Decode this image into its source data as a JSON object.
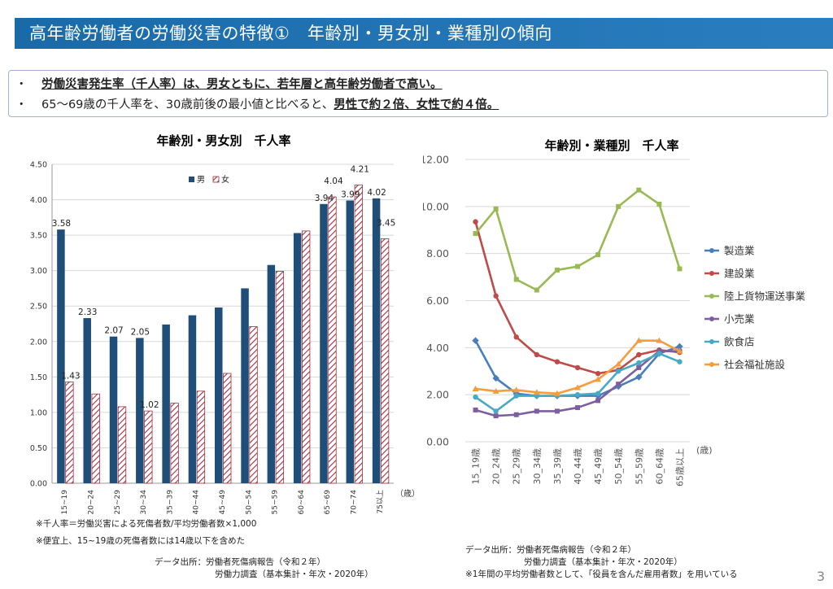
{
  "header": {
    "title": "高年齢労働者の労働災害の特徴①　年齢別・男女別・業種別の傾向"
  },
  "summary": {
    "bullet": "・",
    "line1_bold": "労働災害発生率（千人率）は、男女ともに、若年層と高年齢労働者で高い。",
    "line2_plain": "65～69歳の千人率を、30歳前後の最小値と比べると、",
    "line2_bold": "男性で約２倍、女性で約４倍。"
  },
  "notes": {
    "left1": "※千人率＝労働災害による死傷者数/平均労働者数×1,000",
    "left2": "※便宜上、15~19歳の死傷者数には14歳以下を含めた",
    "left_source1": "データ出所：労働者死傷病報告（令和２年）",
    "left_source2": "労働力調査（基本集計・年次・2020年）",
    "right_source1": "データ出所：労働者死傷病報告（令和２年）",
    "right_source2": "労働力調査（基本集計・年次・2020年）",
    "right_note": "※1年間の平均労働者数として、「役員を含んだ雇用者数」を用いている"
  },
  "page_number": "3",
  "colors": {
    "male": "#1f4e79",
    "female_stroke": "#a03040",
    "title_bar": "#1a6aa8",
    "製造業": "#4a7ebb",
    "建設業": "#be4b48",
    "陸上貨物運送事業": "#98b954",
    "小売業": "#7d5fa0",
    "飲食店": "#46aac5",
    "社会福祉施設": "#f59d3d"
  },
  "chart_data": [
    {
      "type": "bar",
      "title": "年齢別・男女別　千人率",
      "x_unit": "（歳）",
      "categories": [
        "15~19",
        "20~24",
        "25~29",
        "30~34",
        "35~39",
        "40~44",
        "45~49",
        "50~54",
        "55~59",
        "60~64",
        "65~69",
        "70~74",
        "75以上"
      ],
      "series": [
        {
          "name": "男",
          "values": [
            3.58,
            2.33,
            2.07,
            2.05,
            2.24,
            2.37,
            2.48,
            2.75,
            3.08,
            3.53,
            3.94,
            3.99,
            4.02
          ]
        },
        {
          "name": "女",
          "values": [
            1.43,
            1.26,
            1.08,
            1.02,
            1.13,
            1.3,
            1.55,
            2.21,
            2.99,
            3.56,
            4.04,
            4.21,
            3.45
          ]
        }
      ],
      "data_labels": {
        "男": [
          "3.58",
          "2.33",
          "2.07",
          "2.05",
          "",
          "",
          "",
          "",
          "",
          "",
          "3.94",
          "3.99",
          "4.02"
        ],
        "女": [
          "1.43",
          "",
          "",
          "1.02",
          "",
          "",
          "",
          "",
          "",
          "",
          "4.04",
          "4.21",
          "3.45"
        ]
      },
      "ylim": [
        0,
        4.5
      ],
      "yticks": [
        "0.00",
        "0.50",
        "1.00",
        "1.50",
        "2.00",
        "2.50",
        "3.00",
        "3.50",
        "4.00",
        "4.50"
      ],
      "grid": true,
      "legend": "top-center"
    },
    {
      "type": "line",
      "title": "年齢別・業種別　千人率",
      "x_unit": "(歳)",
      "categories": [
        "15_19歳",
        "20_24歳",
        "25_29歳",
        "30_34歳",
        "35_39歳",
        "40_44歳",
        "45_49歳",
        "50_54歳",
        "55_59歳",
        "60_64歳",
        "65歳以上"
      ],
      "series": [
        {
          "name": "製造業",
          "values": [
            4.3,
            2.7,
            2.05,
            1.95,
            1.95,
            1.95,
            1.95,
            2.35,
            2.75,
            3.75,
            4.05
          ]
        },
        {
          "name": "建設業",
          "values": [
            9.35,
            6.2,
            4.45,
            3.7,
            3.4,
            3.15,
            2.9,
            3.05,
            3.7,
            3.9,
            3.8
          ]
        },
        {
          "name": "陸上貨物運送事業",
          "values": [
            8.85,
            9.9,
            6.9,
            6.45,
            7.3,
            7.45,
            7.95,
            10.0,
            10.7,
            10.1,
            7.35
          ]
        },
        {
          "name": "小売業",
          "values": [
            1.35,
            1.1,
            1.15,
            1.3,
            1.3,
            1.45,
            1.75,
            2.45,
            3.15,
            3.85,
            3.85
          ]
        },
        {
          "name": "飲食店",
          "values": [
            1.9,
            1.3,
            1.95,
            1.95,
            1.95,
            2.0,
            2.05,
            3.0,
            3.35,
            3.75,
            3.4
          ]
        },
        {
          "name": "社会福祉施設",
          "values": [
            2.25,
            2.15,
            2.2,
            2.1,
            2.05,
            2.3,
            2.65,
            3.3,
            4.3,
            4.3,
            3.85
          ]
        }
      ],
      "ylim": [
        0,
        12
      ],
      "yticks": [
        "0.00",
        "2.00",
        "4.00",
        "6.00",
        "8.00",
        "10.00",
        "12.00"
      ],
      "grid": true,
      "legend": "right"
    }
  ]
}
